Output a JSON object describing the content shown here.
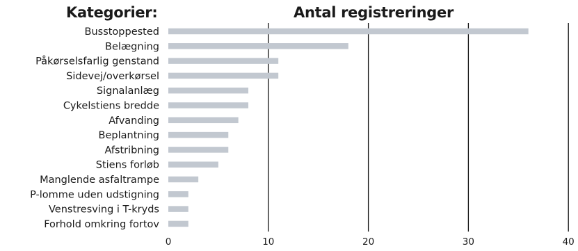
{
  "header": {
    "categories_heading": "Kategorier:",
    "title": "Antal registreringer"
  },
  "colors": {
    "bar": "#c2c8d0",
    "grid": "#111111",
    "text": "#1a1a1a"
  },
  "chart_data": {
    "type": "bar",
    "orientation": "horizontal",
    "title": "Antal registreringer",
    "categories_heading": "Kategorier:",
    "categories": [
      "Busstoppested",
      "Belægning",
      "Påkørselsfarlig genstand",
      "Sidevej/overkørsel",
      "Signalanlæg",
      "Cykelstiens bredde",
      "Afvanding",
      "Beplantning",
      "Afstribning",
      "Stiens forløb",
      "Manglende asfaltrampe",
      "P-lomme uden udstigning",
      "Venstresving i T-kryds",
      "Forhold omkring fortov"
    ],
    "values": [
      36,
      18,
      11,
      11,
      8,
      8,
      7,
      6,
      6,
      5,
      3,
      2,
      2,
      2
    ],
    "xlim": [
      0,
      40
    ],
    "xticks": [
      0,
      10,
      20,
      30,
      40
    ],
    "grid": "vertical lines at 10, 20, 30, 40",
    "legend": "none"
  }
}
